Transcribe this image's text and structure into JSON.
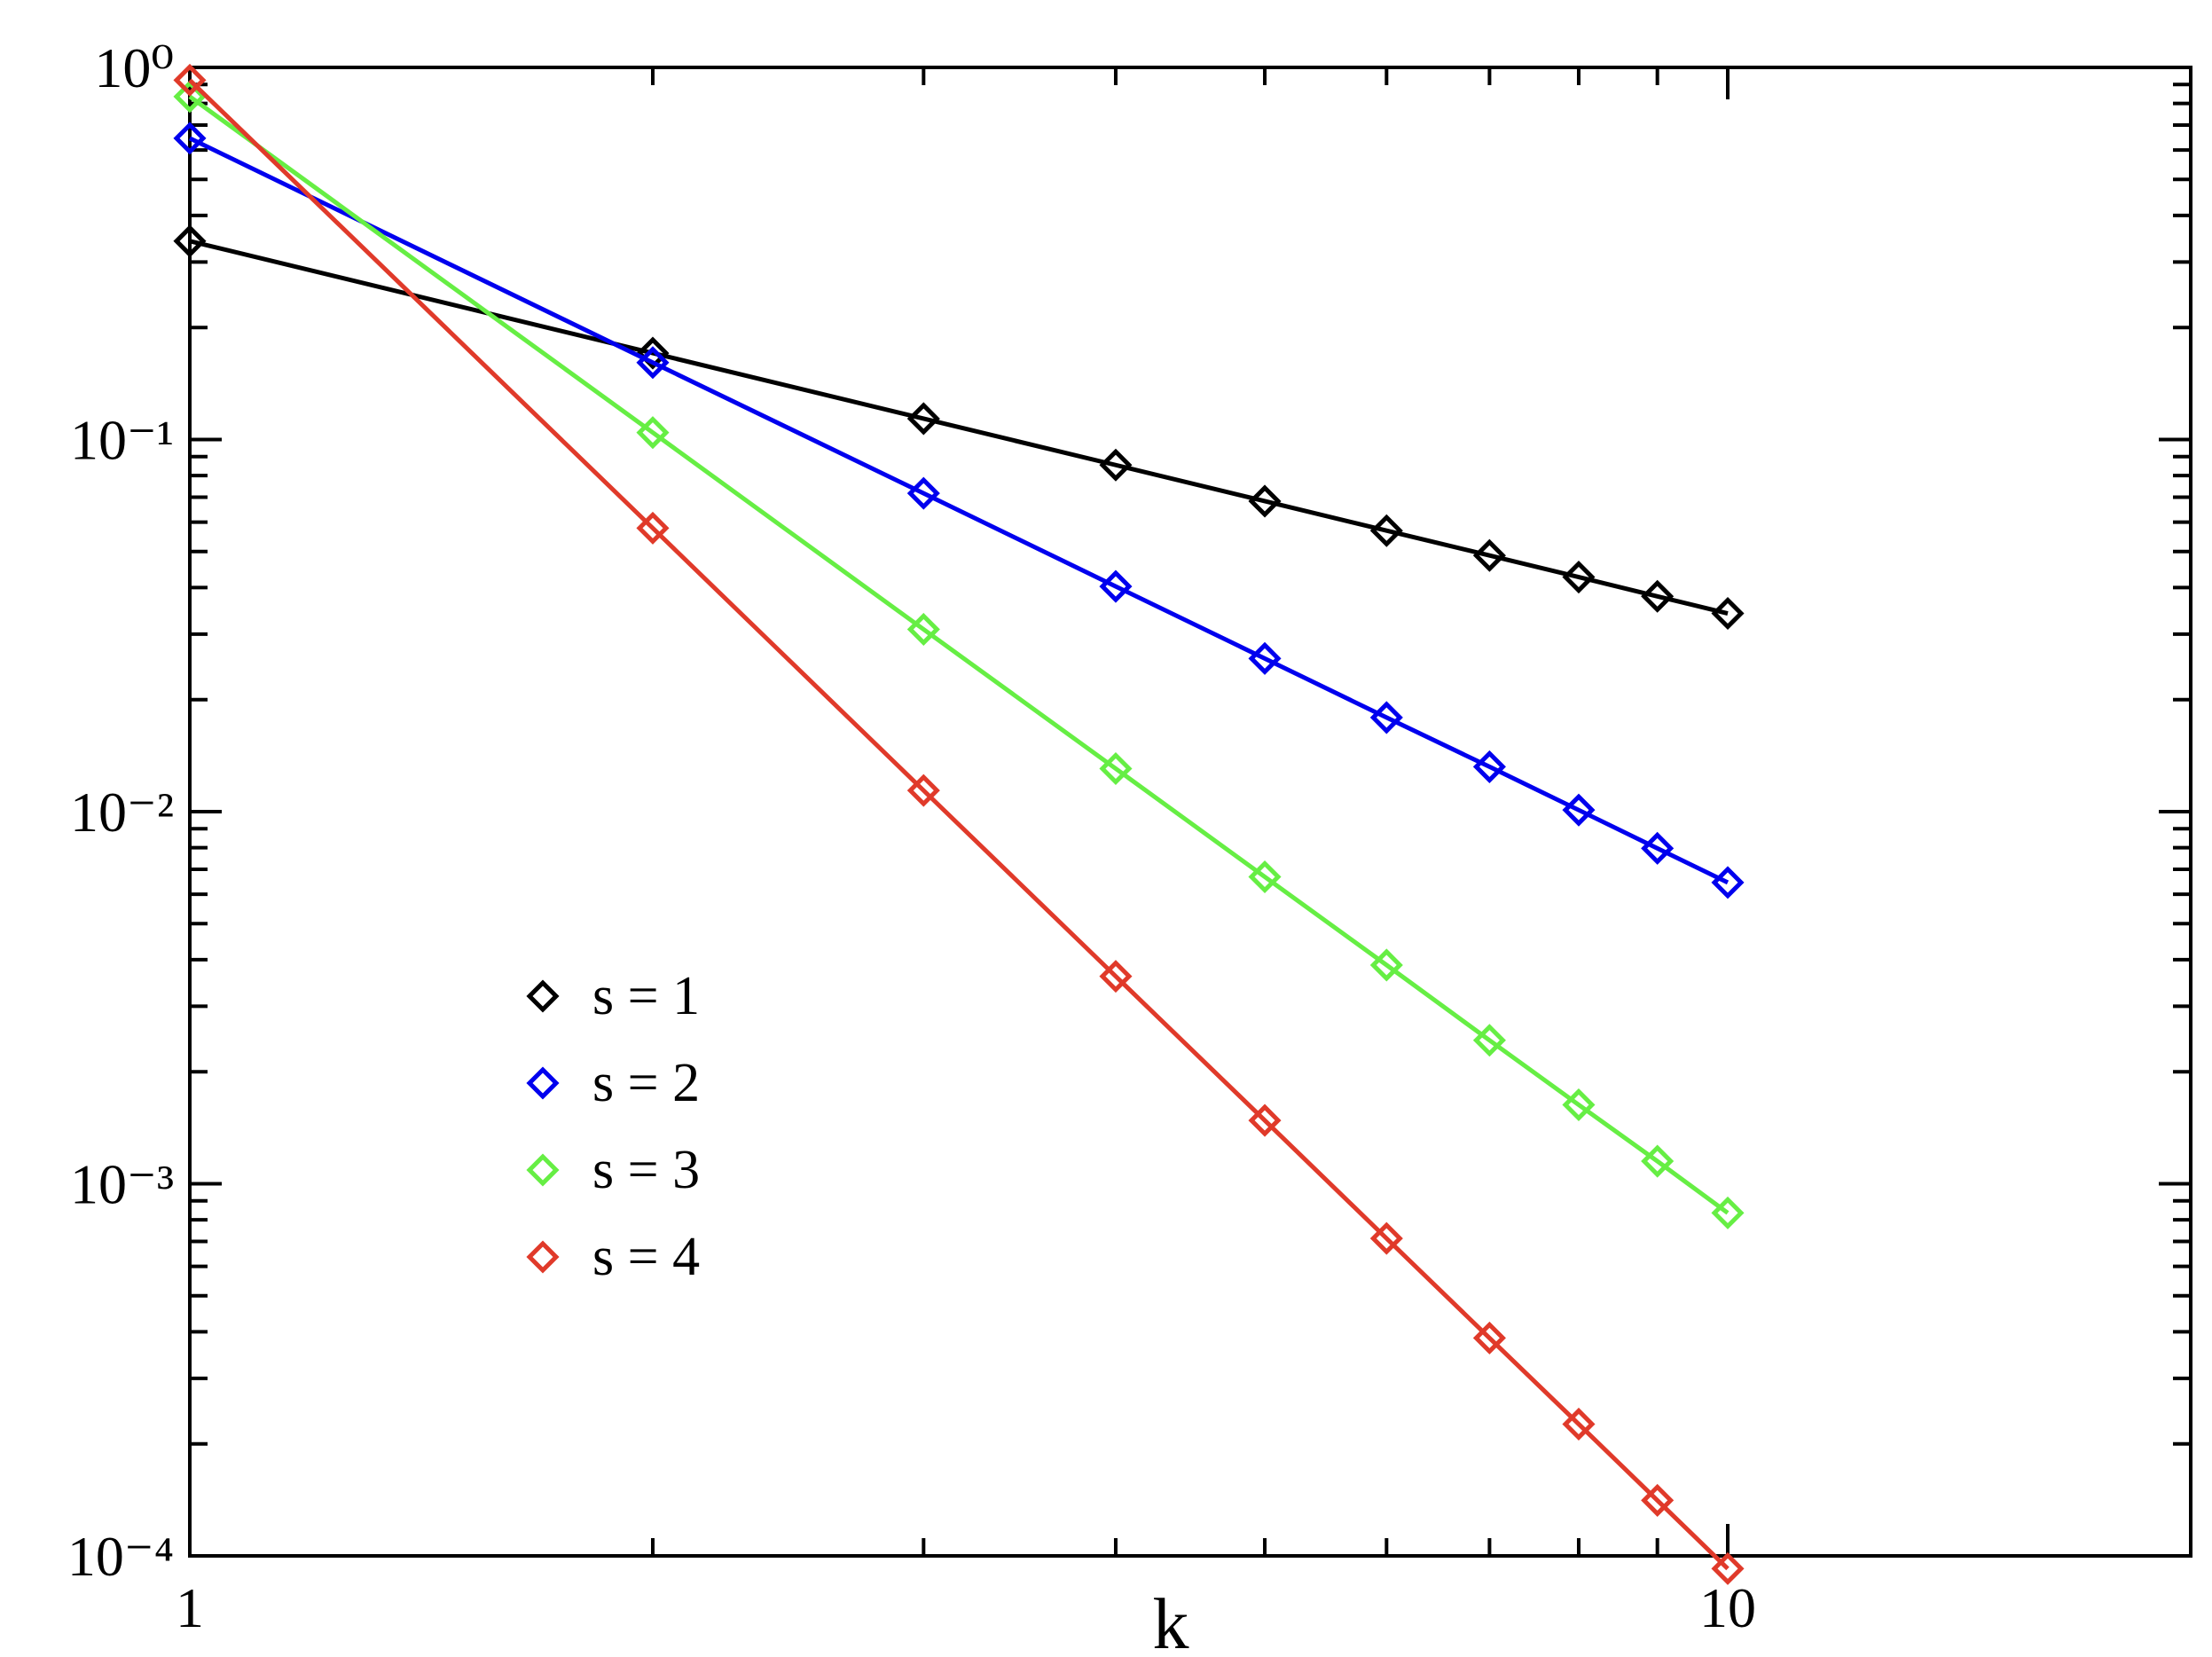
{
  "chart_data": {
    "type": "line",
    "xlabel": "k",
    "log_x": true,
    "log_y": true,
    "x": [
      1,
      2,
      3,
      4,
      5,
      6,
      7,
      8,
      9,
      10
    ],
    "series": [
      {
        "name": "s = 1",
        "color": "#000000",
        "values": [
          0.3414,
          0.1707,
          0.1138,
          0.0854,
          0.0683,
          0.0569,
          0.0488,
          0.0427,
          0.0379,
          0.0341
        ]
      },
      {
        "name": "s = 2",
        "color": "#0000ee",
        "values": [
          0.645,
          0.161,
          0.0717,
          0.0403,
          0.0258,
          0.0179,
          0.0132,
          0.0101,
          0.00797,
          0.00645
        ]
      },
      {
        "name": "s = 3",
        "color": "#66ee44",
        "values": [
          0.835,
          0.1044,
          0.0309,
          0.01305,
          0.00668,
          0.00387,
          0.00243,
          0.00163,
          0.00115,
          0.000835
        ]
      },
      {
        "name": "s = 4",
        "color": "#e03a2a",
        "values": [
          0.924,
          0.0578,
          0.0114,
          0.00361,
          0.00148,
          0.000713,
          0.000385,
          0.000226,
          0.000141,
          9.24e-05
        ]
      }
    ],
    "xlim": [
      1,
      20
    ],
    "ylim": [
      0.0001,
      1
    ],
    "xticks": [
      1,
      10
    ],
    "yticks": [
      {
        "value": 1,
        "label": "10⁰"
      },
      {
        "value": 0.1,
        "label": "10⁻¹"
      },
      {
        "value": 0.01,
        "label": "10⁻²"
      },
      {
        "value": 0.001,
        "label": "10⁻³"
      },
      {
        "value": 0.0001,
        "label": "10⁻⁴"
      }
    ],
    "xminorticks": [
      2,
      3,
      4,
      5,
      6,
      7,
      8,
      9,
      20
    ],
    "yminorticks": [
      0.0002,
      0.0003,
      0.0004,
      0.0005,
      0.0006,
      0.0007,
      0.0008,
      0.0009,
      0.002,
      0.003,
      0.004,
      0.005,
      0.006,
      0.007,
      0.008,
      0.009,
      0.02,
      0.03,
      0.04,
      0.05,
      0.06,
      0.07,
      0.08,
      0.09,
      0.2,
      0.3,
      0.4,
      0.5,
      0.6,
      0.7,
      0.8,
      0.9
    ],
    "legend": "lower-left"
  }
}
